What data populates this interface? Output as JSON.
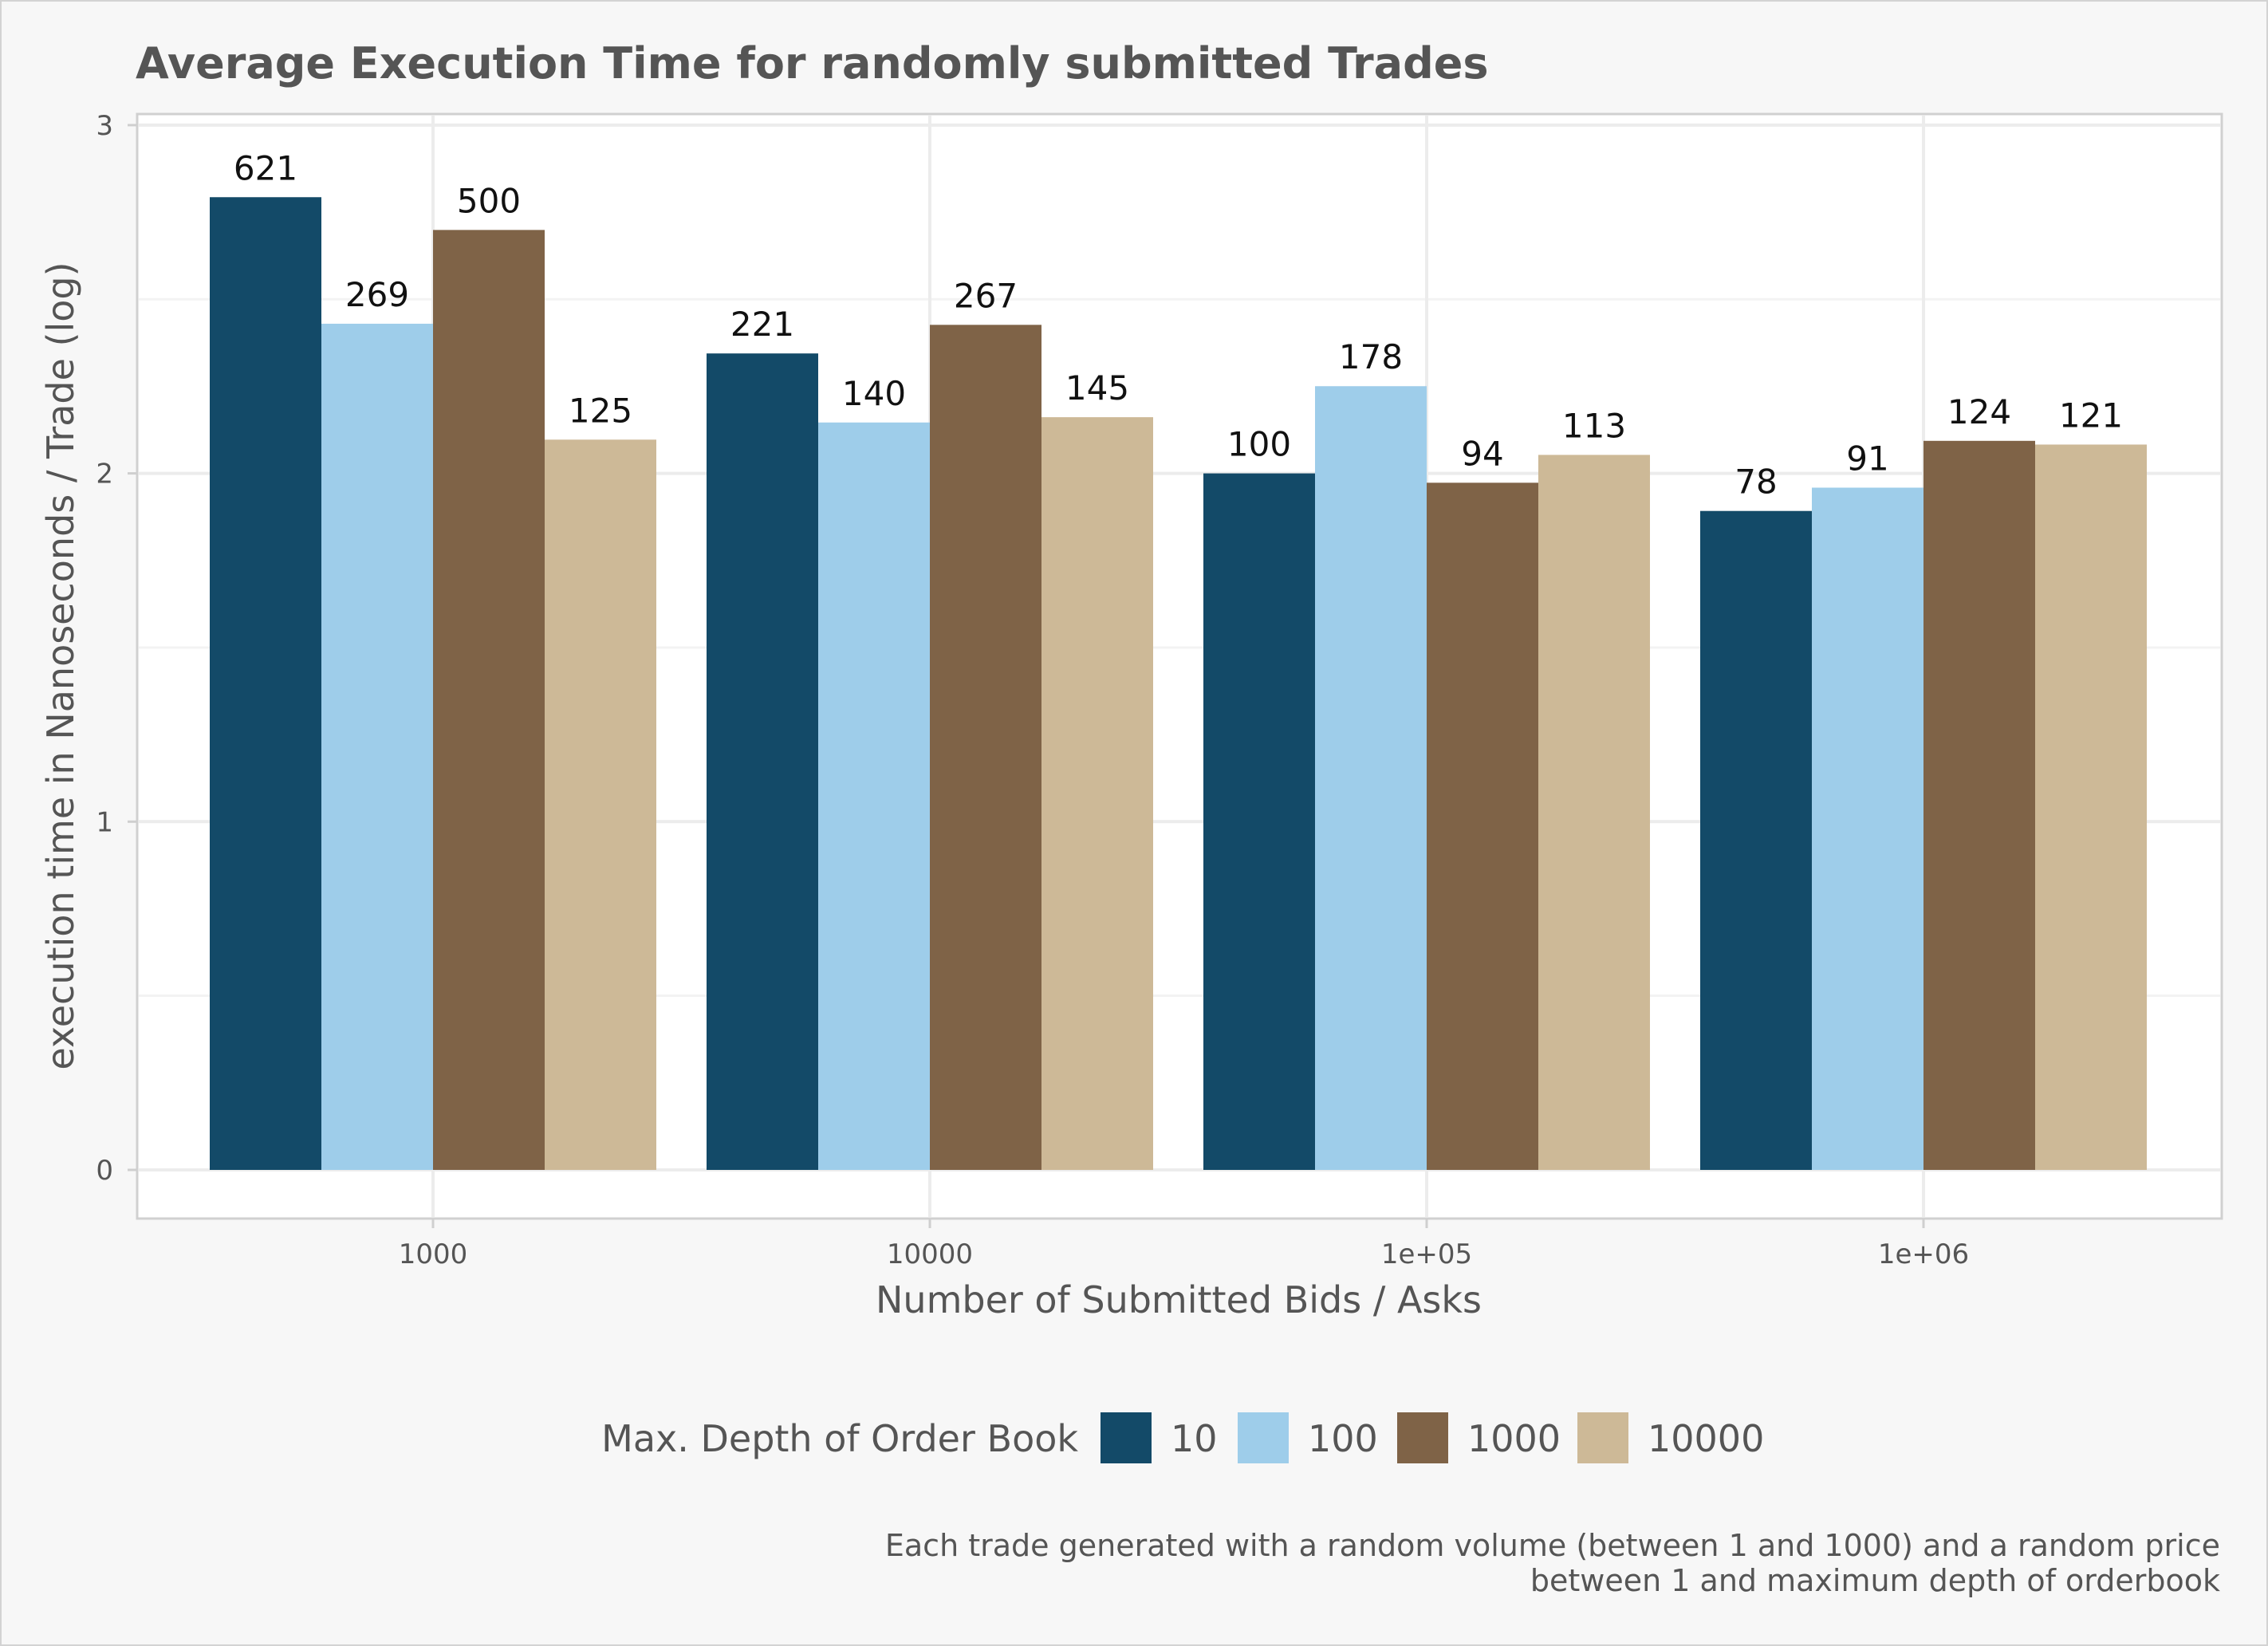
{
  "chart_data": {
    "type": "bar",
    "title": "Average Execution Time for randomly submitted Trades",
    "xlabel": "Number of Submitted Bids / Asks",
    "ylabel": "execution time in Nanoseconds / Trade (log)",
    "categories": [
      "1000",
      "10000",
      "1e+05",
      "1e+06"
    ],
    "y_ticks": [
      "0",
      "1",
      "2",
      "3"
    ],
    "ylim": [
      0,
      3
    ],
    "y_scale": "log10",
    "grid": true,
    "legend": {
      "title": "Max. Depth of Order Book",
      "placement": "bottom"
    },
    "series": [
      {
        "name": "10",
        "color": "#134a68",
        "values": [
          621,
          221,
          100,
          78
        ]
      },
      {
        "name": "100",
        "color": "#9ecdea",
        "values": [
          269,
          140,
          178,
          91
        ]
      },
      {
        "name": "1000",
        "color": "#7f6347",
        "values": [
          500,
          267,
          94,
          124
        ]
      },
      {
        "name": "10000",
        "color": "#cdb997",
        "values": [
          125,
          145,
          113,
          121
        ]
      }
    ],
    "caption": [
      "Each trade generated with a random volume (between 1 and 1000) and a random price",
      "between 1 and maximum depth of orderbook"
    ]
  }
}
